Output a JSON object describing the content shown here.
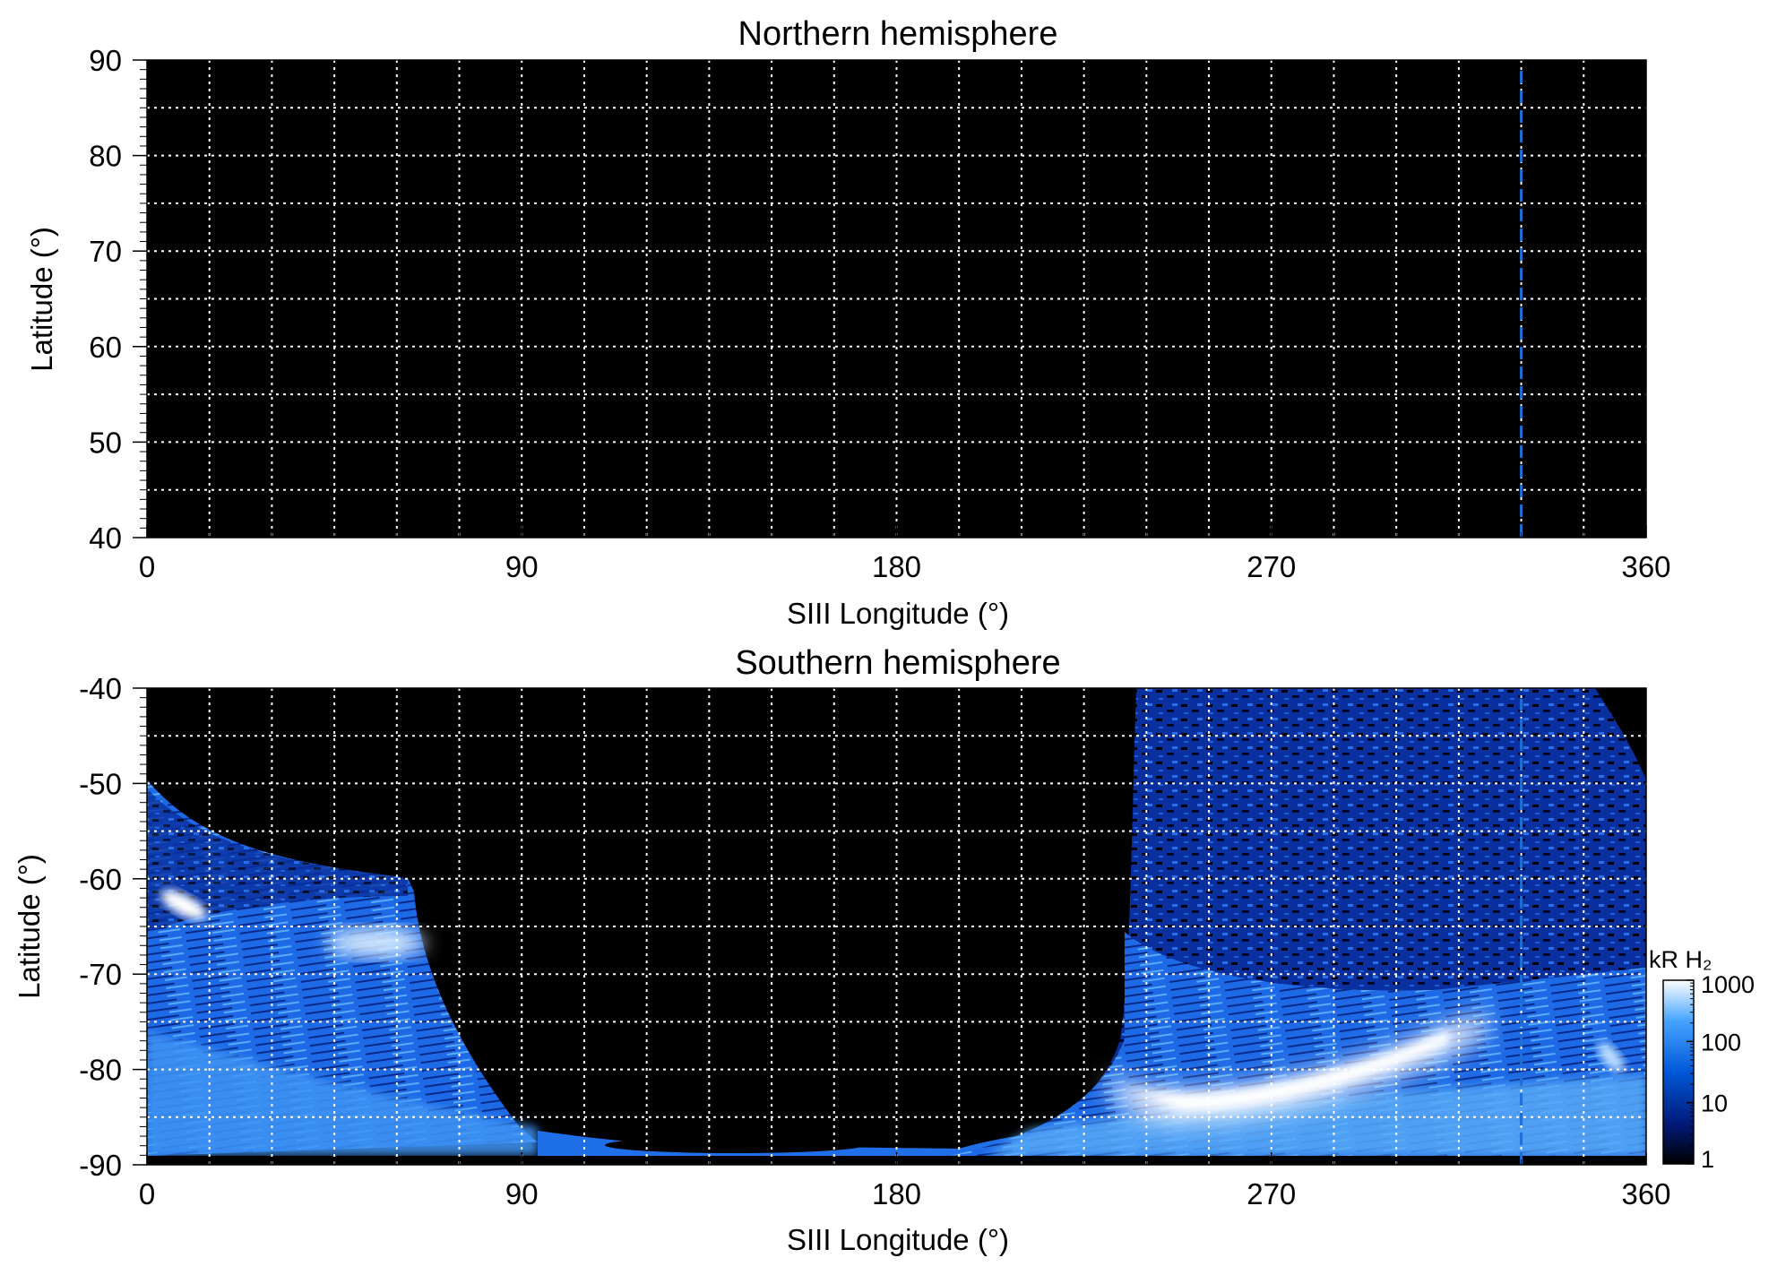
{
  "chart_data": [
    {
      "type": "heatmap",
      "title": "Northern hemisphere",
      "xlabel": "SIII Longitude (°)",
      "ylabel": "Latitude (°)",
      "xlim": [
        0,
        360
      ],
      "ylim": [
        40,
        90
      ],
      "xticks": [
        "0",
        "90",
        "180",
        "270",
        "360"
      ],
      "yticks": [
        "40",
        "50",
        "60",
        "70",
        "80",
        "90"
      ],
      "grid": true,
      "grid_spacing_x": 15,
      "grid_spacing_y": 5,
      "background": "#000000",
      "dashed_marker_longitude": 330,
      "dashed_marker_color": "#1f6fd6",
      "emission": []
    },
    {
      "type": "heatmap",
      "title": "Southern hemisphere",
      "xlabel": "SIII Longitude (°)",
      "ylabel": "Latitude (°)",
      "xlim": [
        0,
        360
      ],
      "ylim": [
        -90,
        -40
      ],
      "xticks": [
        "0",
        "90",
        "180",
        "270",
        "360"
      ],
      "yticks": [
        "-90",
        "-80",
        "-70",
        "-60",
        "-50",
        "-40"
      ],
      "grid": true,
      "grid_spacing_x": 15,
      "grid_spacing_y": 5,
      "background": "#000000",
      "dashed_marker_longitude": 330,
      "dashed_marker_color": "#1f6fd6",
      "emission": [
        {
          "region": "left lobe",
          "lon_range": [
            0,
            80
          ],
          "lat_range": [
            -90,
            -50
          ],
          "intensity_kR": "10-300"
        },
        {
          "region": "bright spot",
          "lon": 12,
          "lat": -62.5,
          "intensity_kR": "~1000"
        },
        {
          "region": "bright arc",
          "lon": 55,
          "lat": -65,
          "intensity_kR": "~500"
        },
        {
          "region": "right lobe",
          "lon_range": [
            235,
            360
          ],
          "lat_range": [
            -90,
            -40
          ],
          "intensity_kR": "10-300"
        },
        {
          "region": "main oval arc",
          "lon_range": [
            240,
            330
          ],
          "lat_range": [
            -84,
            -76
          ],
          "intensity_kR": "~1000"
        },
        {
          "region": "dark cap",
          "lon_range": [
            75,
            240
          ],
          "lat_range": [
            -90,
            -40
          ],
          "intensity_kR": "<1"
        }
      ],
      "colorbar": {
        "label": "kR H₂",
        "scale": "log",
        "range": [
          1,
          1000
        ],
        "ticks": [
          "1",
          "10",
          "100",
          "1000"
        ],
        "colors": [
          "#000000",
          "#001a7a",
          "#0058d8",
          "#46a4ff",
          "#ffffff"
        ]
      }
    }
  ]
}
